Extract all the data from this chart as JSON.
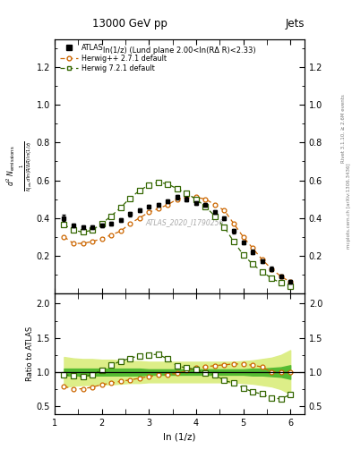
{
  "title": "13000 GeV pp",
  "title_right": "Jets",
  "panel_title": "ln(1/z) (Lund plane 2.00<ln(RΔ R)<2.33)",
  "watermark": "ATLAS_2020_I1790256",
  "ylabel_main_line1": "d² N_emissions",
  "ylabel_main_line2": "         ln (1/z)",
  "ylabel_ratio": "Ratio to ATLAS",
  "xlabel": "ln (1/z)",
  "right_label": "Rivet 3.1.10, ≥ 2.6M events",
  "right_label2": "mcplots.cern.ch [arXiv:1306.3436]",
  "xlim": [
    1.0,
    6.3
  ],
  "ylim_main": [
    0.0,
    1.35
  ],
  "ylim_ratio": [
    0.38,
    2.15
  ],
  "yticks_main": [
    0.2,
    0.4,
    0.6,
    0.8,
    1.0,
    1.2
  ],
  "yticks_ratio": [
    0.5,
    1.0,
    1.5,
    2.0
  ],
  "atlas_x": [
    1.2,
    1.4,
    1.6,
    1.8,
    2.0,
    2.2,
    2.4,
    2.6,
    2.8,
    3.0,
    3.2,
    3.4,
    3.6,
    3.8,
    4.0,
    4.2,
    4.4,
    4.6,
    4.8,
    5.0,
    5.2,
    5.4,
    5.6,
    5.8,
    6.0
  ],
  "atlas_y": [
    0.4,
    0.36,
    0.35,
    0.35,
    0.36,
    0.37,
    0.39,
    0.42,
    0.44,
    0.46,
    0.47,
    0.49,
    0.51,
    0.5,
    0.48,
    0.47,
    0.43,
    0.4,
    0.33,
    0.27,
    0.22,
    0.17,
    0.13,
    0.09,
    0.06
  ],
  "atlas_yerr": [
    0.015,
    0.01,
    0.01,
    0.01,
    0.01,
    0.01,
    0.01,
    0.01,
    0.01,
    0.01,
    0.01,
    0.01,
    0.01,
    0.01,
    0.01,
    0.01,
    0.01,
    0.01,
    0.01,
    0.01,
    0.01,
    0.01,
    0.01,
    0.01,
    0.01
  ],
  "hppdef_x": [
    1.2,
    1.4,
    1.6,
    1.8,
    2.0,
    2.2,
    2.4,
    2.6,
    2.8,
    3.0,
    3.2,
    3.4,
    3.6,
    3.8,
    4.0,
    4.2,
    4.4,
    4.6,
    4.8,
    5.0,
    5.2,
    5.4,
    5.6,
    5.8,
    6.0
  ],
  "hppdef_y": [
    0.3,
    0.265,
    0.265,
    0.275,
    0.29,
    0.31,
    0.33,
    0.37,
    0.4,
    0.43,
    0.45,
    0.47,
    0.5,
    0.51,
    0.51,
    0.5,
    0.47,
    0.44,
    0.37,
    0.3,
    0.24,
    0.18,
    0.13,
    0.09,
    0.06
  ],
  "h721def_x": [
    1.2,
    1.4,
    1.6,
    1.8,
    2.0,
    2.2,
    2.4,
    2.6,
    2.8,
    3.0,
    3.2,
    3.4,
    3.6,
    3.8,
    4.0,
    4.2,
    4.4,
    4.6,
    4.8,
    5.0,
    5.2,
    5.4,
    5.6,
    5.8,
    6.0
  ],
  "h721def_y": [
    0.365,
    0.335,
    0.325,
    0.335,
    0.37,
    0.41,
    0.455,
    0.505,
    0.545,
    0.575,
    0.59,
    0.58,
    0.555,
    0.53,
    0.5,
    0.46,
    0.41,
    0.35,
    0.275,
    0.205,
    0.155,
    0.115,
    0.08,
    0.055,
    0.04
  ],
  "hppdef_ratio": [
    0.79,
    0.755,
    0.755,
    0.78,
    0.815,
    0.84,
    0.865,
    0.885,
    0.91,
    0.935,
    0.955,
    0.965,
    0.98,
    1.02,
    1.065,
    1.075,
    1.095,
    1.105,
    1.12,
    1.115,
    1.1,
    1.075,
    1.0,
    1.0,
    1.0
  ],
  "h721def_ratio": [
    0.96,
    0.95,
    0.93,
    0.96,
    1.03,
    1.1,
    1.16,
    1.2,
    1.24,
    1.25,
    1.26,
    1.19,
    1.09,
    1.06,
    1.04,
    0.98,
    0.96,
    0.875,
    0.84,
    0.77,
    0.71,
    0.68,
    0.62,
    0.61,
    0.67
  ],
  "band_inner_lo": [
    0.95,
    0.95,
    0.95,
    0.95,
    0.95,
    0.95,
    0.95,
    0.95,
    0.95,
    0.96,
    0.96,
    0.96,
    0.96,
    0.96,
    0.96,
    0.96,
    0.96,
    0.96,
    0.96,
    0.96,
    0.95,
    0.95,
    0.94,
    0.93,
    0.9
  ],
  "band_inner_hi": [
    1.05,
    1.05,
    1.05,
    1.05,
    1.05,
    1.05,
    1.05,
    1.05,
    1.05,
    1.04,
    1.04,
    1.04,
    1.04,
    1.04,
    1.04,
    1.04,
    1.04,
    1.04,
    1.04,
    1.04,
    1.05,
    1.05,
    1.06,
    1.07,
    1.1
  ],
  "band_outer_lo": [
    0.78,
    0.8,
    0.81,
    0.81,
    0.82,
    0.82,
    0.83,
    0.84,
    0.84,
    0.85,
    0.85,
    0.85,
    0.85,
    0.85,
    0.85,
    0.85,
    0.85,
    0.85,
    0.85,
    0.84,
    0.83,
    0.81,
    0.79,
    0.75,
    0.68
  ],
  "band_outer_hi": [
    1.22,
    1.2,
    1.19,
    1.19,
    1.18,
    1.18,
    1.17,
    1.16,
    1.16,
    1.15,
    1.15,
    1.15,
    1.15,
    1.15,
    1.15,
    1.15,
    1.15,
    1.15,
    1.15,
    1.16,
    1.17,
    1.19,
    1.21,
    1.25,
    1.32
  ],
  "atlas_color": "#000000",
  "hppdef_color": "#cc6600",
  "h721def_color": "#336600",
  "band_inner_color": "#55bb33",
  "band_outer_color": "#ddee88"
}
